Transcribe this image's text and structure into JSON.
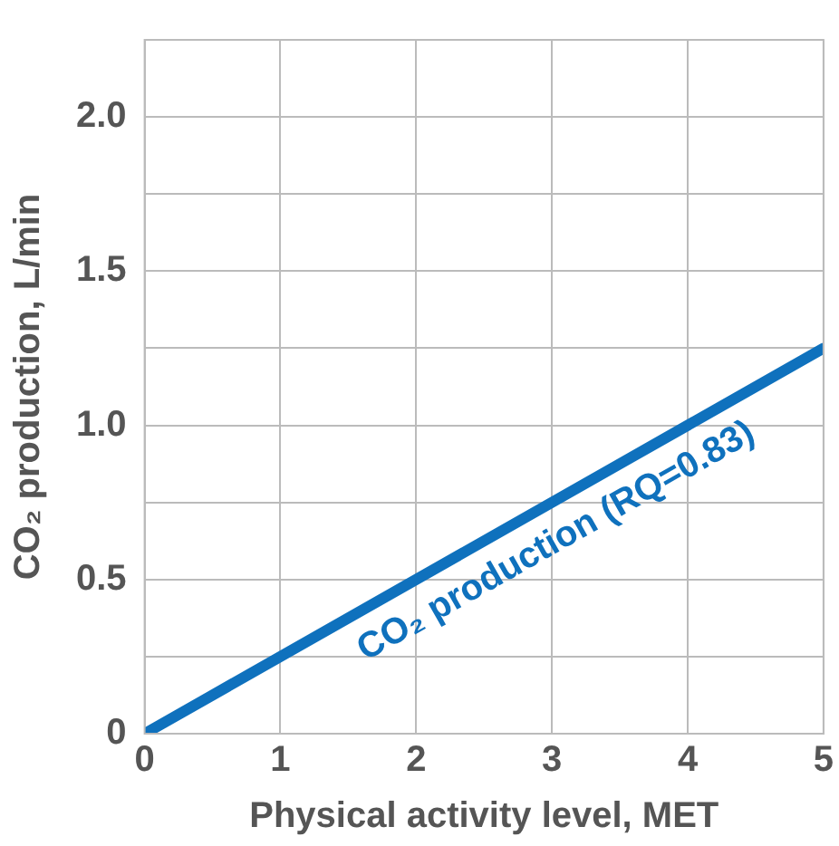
{
  "chart_data": {
    "type": "line",
    "xlabel": "Physical activity level, MET",
    "ylabel": "CO₂ production, L/min",
    "x": [
      0,
      5
    ],
    "series": [
      {
        "name": "CO₂ production (RQ=0.83)",
        "color": "#0f71bd",
        "values": [
          0,
          1.25
        ]
      }
    ],
    "xlim": [
      0,
      5
    ],
    "xticks": [
      0,
      1,
      2,
      3,
      4,
      5
    ],
    "ylim": [
      0,
      2.25
    ],
    "yticks": [
      0,
      {
        "value": 0.25,
        "label": null
      },
      0.5,
      {
        "value": 0.75,
        "label": null
      },
      {
        "value": 1,
        "label": "1.0"
      },
      {
        "value": 1.25,
        "label": null
      },
      1.5,
      {
        "value": 1.75,
        "label": null
      },
      {
        "value": 2,
        "label": "2.0"
      },
      {
        "value": 2.25,
        "label": null
      }
    ],
    "grid": true,
    "legend": false,
    "marker": "none",
    "line_style": "solid"
  }
}
